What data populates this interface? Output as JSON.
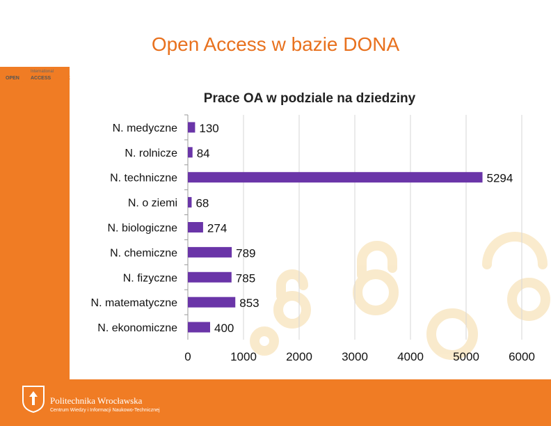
{
  "slide": {
    "title": "Open Access w bazie DONA"
  },
  "logo": {
    "line1": "International",
    "open": "OPEN",
    "access": "ACCESS",
    "week": "WEEK"
  },
  "footer": {
    "university": "Politechnika Wrocławska",
    "subtitle": "Centrum Wiedzy i Informacji Naukowo-Technicznej"
  },
  "colors": {
    "accent": "#F07C24",
    "title": "#E8711E",
    "bar": "#6A35A8"
  },
  "chart_data": {
    "type": "bar",
    "orientation": "horizontal",
    "title": "Prace OA w podziale na dziedziny",
    "categories": [
      "N. medyczne",
      "N. rolnicze",
      "N. techniczne",
      "N. o ziemi",
      "N. biologiczne",
      "N. chemiczne",
      "N. fizyczne",
      "N. matematyczne",
      "N. ekonomiczne"
    ],
    "values": [
      130,
      84,
      5294,
      68,
      274,
      789,
      785,
      853,
      400
    ],
    "xticks": [
      "0",
      "1000",
      "2000",
      "3000",
      "4000",
      "5000",
      "6000"
    ],
    "xlim": [
      0,
      6000
    ],
    "grid": true,
    "legend": "none"
  }
}
